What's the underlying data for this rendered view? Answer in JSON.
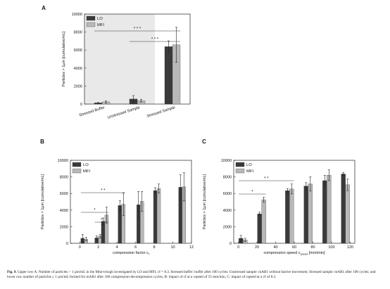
{
  "figure": {
    "caption_label": "Fig. 9.",
    "caption_text": "Upper row A: Number of particles > 1 µm/mL in the Mini-trough investigated by LO and MFI, cf = 8.3. Stressed buffer: buffer after 100 cycles; Unstressed sample: mAB1 without barrier movement; Stressed sample: mAB1 after 100 cycles; and lower row number of particles ≥ 1 µm/mL formed for mAB1 after 100 compression-decompression cycles, B: impact of cf at a cspeed of 55 mm/min, C: impact of cspeed at a cf of 8.3."
  },
  "chart_data": [
    {
      "panel": "A",
      "type": "bar",
      "categories": [
        "Stressed Buffer",
        "Unstressed Sample",
        "Stressed Sample"
      ],
      "series": [
        {
          "name": "LO",
          "color": "#3a3a3a",
          "values": [
            130,
            560,
            6380
          ],
          "errors": [
            40,
            380,
            640
          ]
        },
        {
          "name": "MFI",
          "color": "#b8b8b8",
          "values": [
            240,
            380,
            6580
          ],
          "errors": [
            120,
            150,
            1950
          ]
        }
      ],
      "ylabel": "Particles > 1µm [cumulative/mL]",
      "ylim": [
        0,
        10000
      ],
      "yticks": [
        0,
        2000,
        4000,
        6000,
        8000,
        10000
      ],
      "shaded_region": "left two groups",
      "significance": [
        {
          "label": "* * *",
          "from": "Stressed Buffer",
          "to": "Stressed Sample"
        },
        {
          "label": "* * *",
          "from": "Unstressed Sample",
          "to": "Stressed Sample"
        }
      ],
      "legend": "top-left"
    },
    {
      "panel": "B",
      "type": "bar",
      "x": [
        0.5,
        2,
        2.7,
        4.5,
        6.5,
        8.3,
        11
      ],
      "series": [
        {
          "name": "LO",
          "color": "#3a3a3a",
          "values": [
            600,
            650,
            2650,
            4550,
            4650,
            6350,
            6750
          ],
          "errors": [
            450,
            250,
            400,
            600,
            1600,
            350,
            1500
          ]
        },
        {
          "name": "MFI",
          "color": "#b8b8b8",
          "values": [
            500,
            850,
            3400,
            4700,
            5050,
            6600,
            6800
          ],
          "errors": [
            200,
            200,
            950,
            1350,
            1200,
            550,
            1700
          ]
        }
      ],
      "xlabel": "compression factor c",
      "xlabel_sub": "f",
      "ylabel": "Particles > 1µm [cumulative/mL]",
      "xlim": [
        -1,
        12
      ],
      "xticks": [
        0,
        2,
        4,
        6,
        8,
        10,
        12
      ],
      "ylim": [
        0,
        10000
      ],
      "yticks": [
        0,
        2000,
        4000,
        6000,
        8000,
        10000
      ],
      "significance": [
        {
          "label": "* *",
          "x1": 0.5,
          "x2": 4.5
        },
        {
          "label": "*",
          "x1": 0.5,
          "x2": 2.7
        },
        {
          "label": "*",
          "x1": 2,
          "x2": 2.7
        }
      ],
      "legend": "top-left"
    },
    {
      "panel": "C",
      "type": "bar",
      "x": [
        5,
        25,
        55,
        75,
        95,
        115
      ],
      "series": [
        {
          "name": "LO",
          "color": "#3a3a3a",
          "values": [
            600,
            3550,
            6350,
            6900,
            7550,
            8350
          ],
          "errors": [
            350,
            200,
            250,
            400,
            650,
            200
          ]
        },
        {
          "name": "MFI",
          "color": "#b8b8b8",
          "values": [
            400,
            5250,
            6550,
            7150,
            8200,
            7050
          ],
          "errors": [
            200,
            300,
            600,
            850,
            650,
            700
          ]
        }
      ],
      "xlabel": "compression speed c",
      "xlabel_sub": "speed",
      "xlabel_unit": " [mm/min]",
      "ylabel": "Particles > 1µm [cumulative/mL]",
      "xlim": [
        -5,
        125
      ],
      "xticks": [
        0,
        20,
        40,
        60,
        80,
        100,
        120
      ],
      "ylim": [
        0,
        10000
      ],
      "yticks": [
        0,
        2000,
        4000,
        6000,
        8000,
        10000
      ],
      "significance": [
        {
          "label": "* *",
          "x1": 5,
          "x2": 55
        },
        {
          "label": "*",
          "x1": 5,
          "x2": 25
        }
      ],
      "legend": "top-left"
    }
  ]
}
